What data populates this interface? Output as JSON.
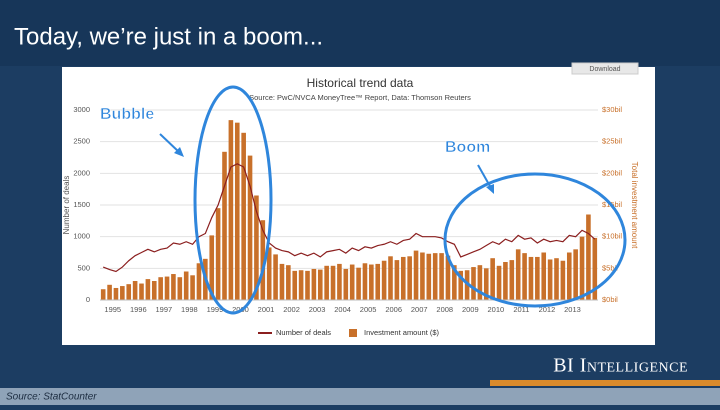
{
  "slide_title": "Today, we’re just in a boom...",
  "source": "Source: StatCounter",
  "brand": "BI Intelligence",
  "button": "Download",
  "chart_data": {
    "type": "combo",
    "title": "Historical trend data",
    "subtitle": "Source: PwC/NVCA MoneyTree™ Report, Data: Thomson Reuters",
    "y_label": "Number of deals",
    "y2_label": "Total investment amount",
    "annotations": [
      "Bubble",
      "Boom"
    ],
    "categories": [
      "1995",
      null,
      null,
      null,
      "1996",
      null,
      null,
      null,
      "1997",
      null,
      null,
      null,
      "1998",
      null,
      null,
      null,
      "1999",
      null,
      null,
      null,
      "2000",
      null,
      null,
      null,
      "2001",
      null,
      null,
      null,
      "2002",
      null,
      null,
      null,
      "2003",
      null,
      null,
      null,
      "2004",
      null,
      null,
      null,
      "2005",
      null,
      null,
      null,
      "2006",
      null,
      null,
      null,
      "2007",
      null,
      null,
      null,
      "2008",
      null,
      null,
      null,
      "2009",
      null,
      null,
      null,
      "2010",
      null,
      null,
      null,
      "2011",
      null,
      null,
      null,
      "2012",
      null,
      null,
      null,
      "2013",
      null,
      null,
      null,
      null,
      null
    ],
    "ylim": [
      0,
      3000
    ],
    "yticks": [
      0,
      500,
      1000,
      1500,
      2000,
      2500,
      3000
    ],
    "y2lim": [
      0,
      30
    ],
    "y2ticks": [
      {
        "value": 0,
        "label": "$0bil"
      },
      {
        "value": 5,
        "label": "$5bil"
      },
      {
        "value": 10,
        "label": "$10bil"
      },
      {
        "value": 15,
        "label": "$15bil"
      },
      {
        "value": 20,
        "label": "$20bil"
      },
      {
        "value": 25,
        "label": "$25bil"
      },
      {
        "value": 30,
        "label": "$30bil"
      }
    ],
    "grid": true,
    "series": [
      {
        "name": "Number of deals",
        "type": "line",
        "color": "#8b1f1f",
        "values": [
          520,
          480,
          450,
          520,
          620,
          700,
          750,
          800,
          760,
          800,
          820,
          900,
          880,
          920,
          880,
          1000,
          1050,
          1300,
          1500,
          1800,
          2100,
          2150,
          2100,
          1800,
          1400,
          1100,
          900,
          820,
          780,
          760,
          700,
          740,
          700,
          740,
          680,
          760,
          780,
          800,
          740,
          820,
          780,
          840,
          820,
          860,
          880,
          920,
          880,
          940,
          960,
          1050,
          1000,
          1000,
          1000,
          980,
          920,
          880,
          680,
          720,
          760,
          800,
          860,
          920,
          880,
          960,
          920,
          1020,
          960,
          980,
          900,
          960,
          920,
          940,
          920,
          1020,
          1000,
          1100,
          1050,
          960
        ]
      },
      {
        "name": "Investment amount ($)",
        "type": "bar",
        "axis": "y2",
        "color": "#c8702a",
        "values": [
          1.7,
          2.4,
          1.9,
          2.2,
          2.5,
          3.0,
          2.6,
          3.3,
          3.0,
          3.6,
          3.7,
          4.1,
          3.6,
          4.5,
          3.9,
          5.8,
          6.5,
          10.2,
          14.5,
          23.4,
          28.4,
          28.0,
          26.4,
          22.8,
          16.5,
          12.6,
          8.3,
          7.2,
          5.7,
          5.5,
          4.6,
          4.7,
          4.6,
          4.9,
          4.8,
          5.4,
          5.4,
          5.7,
          4.9,
          5.6,
          5.1,
          5.8,
          5.6,
          5.7,
          6.2,
          6.9,
          6.3,
          6.8,
          6.9,
          7.8,
          7.5,
          7.3,
          7.4,
          7.4,
          7.0,
          5.5,
          4.6,
          4.7,
          5.2,
          5.5,
          5.0,
          6.6,
          5.4,
          6.0,
          6.3,
          8.0,
          7.4,
          6.8,
          6.8,
          7.5,
          6.4,
          6.6,
          6.2,
          7.5,
          8.0,
          10.0,
          13.5,
          9.8
        ]
      }
    ]
  }
}
